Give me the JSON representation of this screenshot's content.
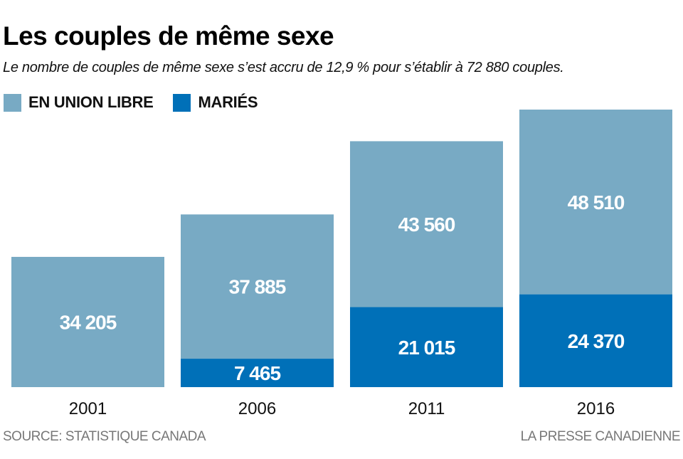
{
  "chart_data": {
    "type": "bar",
    "stacked": true,
    "title": "Les couples de même sexe",
    "subtitle": "Le nombre de couples de même sexe s’est accru de 12,9 % pour s’établir à 72 880 couples.",
    "categories": [
      "2001",
      "2006",
      "2011",
      "2016"
    ],
    "series": [
      {
        "name": "MARIÉS",
        "color": "#0070b8",
        "values": [
          0,
          7465,
          21015,
          24370
        ],
        "labels": [
          "",
          "7 465",
          "21 015",
          "24 370"
        ]
      },
      {
        "name": "EN UNION LIBRE",
        "color": "#78aac4",
        "values": [
          34205,
          37885,
          43560,
          48510
        ],
        "labels": [
          "34 205",
          "37 885",
          "43 560",
          "48 510"
        ]
      }
    ],
    "legend": [
      {
        "label": "EN UNION LIBRE",
        "color": "#78aac4"
      },
      {
        "label": "MARIÉS",
        "color": "#0070b8"
      }
    ],
    "legend_position": "top-left",
    "xlabel": "",
    "ylabel": "",
    "ylim": [
      0,
      72880
    ],
    "grid": false
  },
  "footer": {
    "source": "SOURCE: STATISTIQUE CANADA",
    "credit": "LA PRESSE CANADIENNE"
  }
}
